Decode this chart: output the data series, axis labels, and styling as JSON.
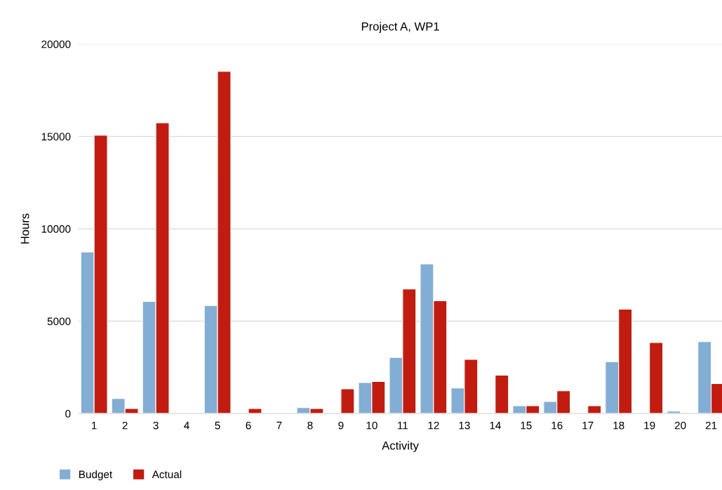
{
  "chart_data": {
    "type": "bar",
    "title": "Project A, WP1",
    "xlabel": "Activity",
    "ylabel": "Hours",
    "categories": [
      "1",
      "2",
      "3",
      "4",
      "5",
      "6",
      "7",
      "8",
      "9",
      "10",
      "11",
      "12",
      "13",
      "14",
      "15",
      "16",
      "17",
      "18",
      "19",
      "20",
      "21"
    ],
    "series": [
      {
        "name": "Budget",
        "color": "#82aed6",
        "values": [
          8750,
          810,
          6070,
          null,
          5850,
          null,
          null,
          320,
          null,
          1680,
          3040,
          8100,
          1380,
          null,
          420,
          650,
          null,
          2810,
          null,
          130,
          3890
        ]
      },
      {
        "name": "Actual",
        "color": "#c21b0f",
        "values": [
          15060,
          270,
          15740,
          null,
          18520,
          270,
          null,
          270,
          1340,
          1740,
          6740,
          6110,
          2930,
          2080,
          420,
          1230,
          420,
          5650,
          3840,
          null,
          1620
        ]
      }
    ],
    "ylim": [
      0,
      20000
    ],
    "yticks": [
      0,
      5000,
      10000,
      15000,
      20000
    ],
    "grid": "y",
    "legend": "bottom left"
  }
}
